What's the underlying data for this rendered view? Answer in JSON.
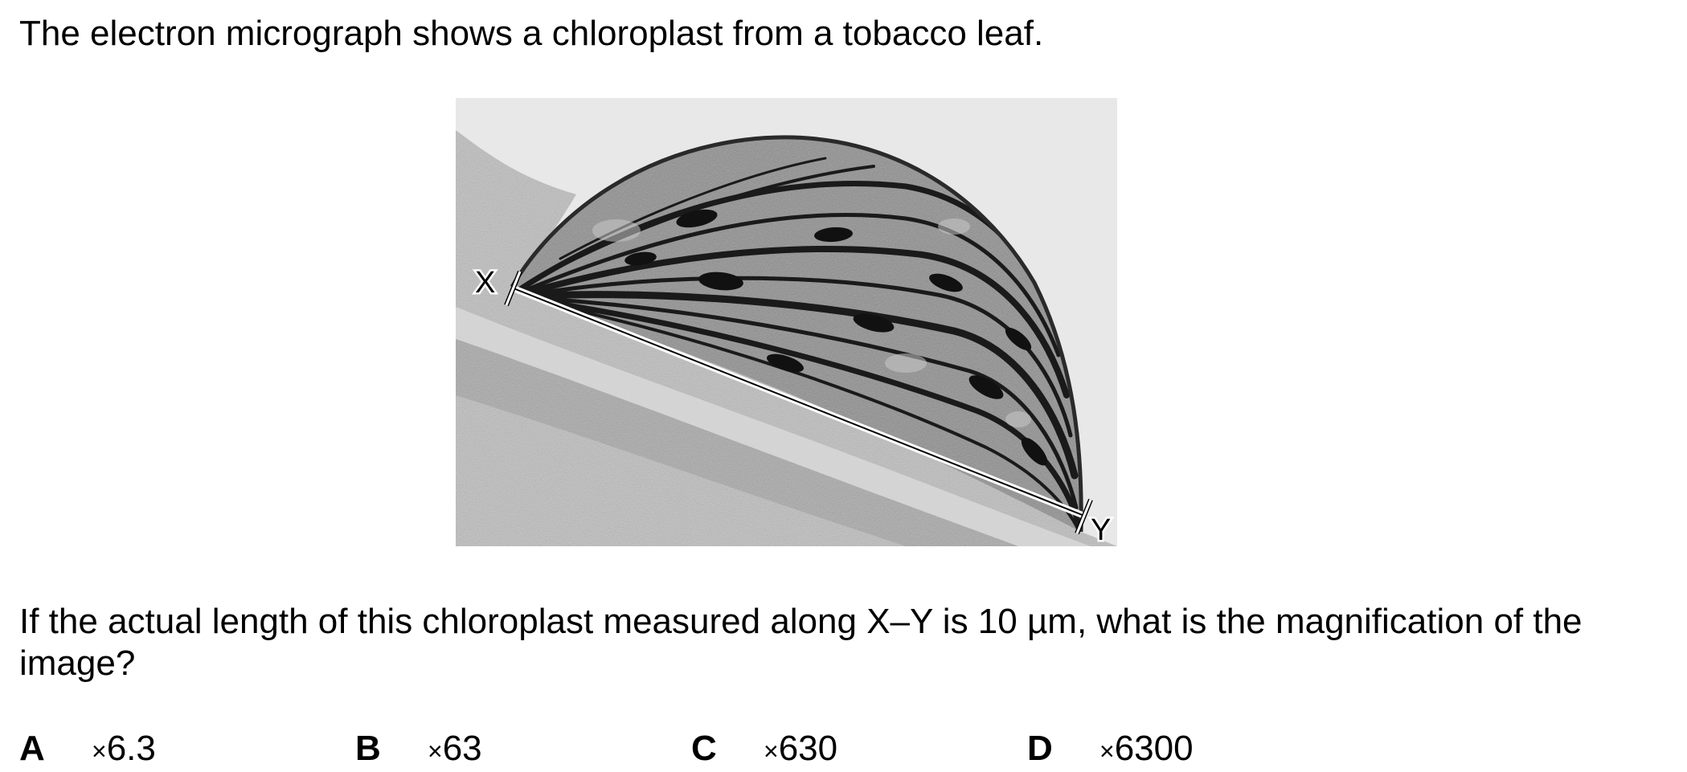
{
  "intro_text": "The electron micrograph shows a chloroplast from a tobacco leaf.",
  "figure": {
    "label_x": "X",
    "label_y": "Y"
  },
  "question_text": "If the actual length of this chloroplast measured along X–Y is 10 µm, what is the magnification of the image?",
  "options": [
    {
      "letter": "A",
      "sign": "×",
      "value": "6.3"
    },
    {
      "letter": "B",
      "sign": "×",
      "value": "63"
    },
    {
      "letter": "C",
      "sign": "×",
      "value": "630"
    },
    {
      "letter": "D",
      "sign": "×",
      "value": "6300"
    }
  ]
}
